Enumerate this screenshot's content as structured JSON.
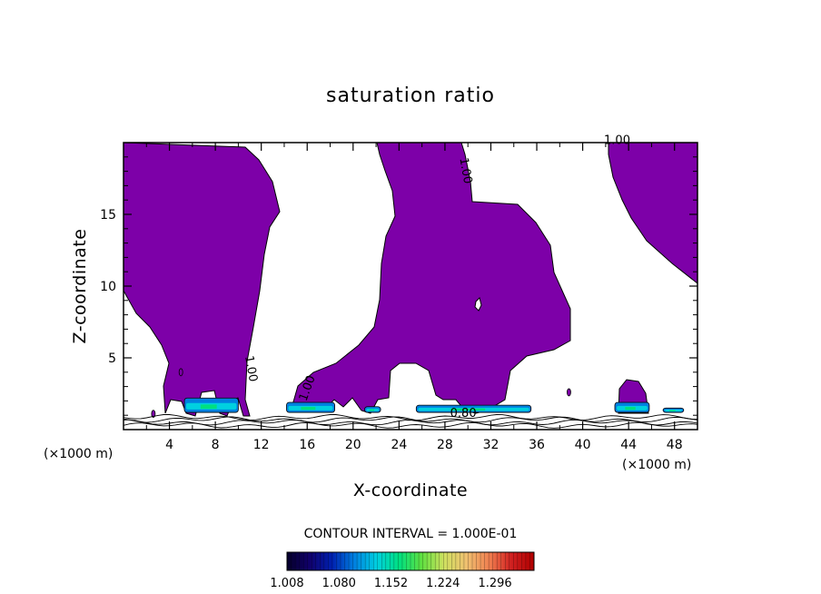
{
  "chart_data": {
    "type": "heatmap",
    "title": "saturation ratio",
    "xlabel": "X-coordinate",
    "ylabel": "Z-coordinate",
    "x_unit": "(×1000 m)",
    "z_unit": "(×1000 m)",
    "xlim": [
      0,
      50
    ],
    "ylim": [
      0,
      20
    ],
    "xticks": [
      4,
      8,
      12,
      16,
      20,
      24,
      28,
      32,
      36,
      40,
      44,
      48
    ],
    "yticks": [
      5,
      10,
      15
    ],
    "contour_interval_label": "CONTOUR INTERVAL = 1.000E-01",
    "contour_labels": [
      {
        "text": "1.00",
        "x": 43.0,
        "z": 19.9
      },
      {
        "text": "1.00",
        "x": 29.5,
        "z": 18.0
      },
      {
        "text": "1.00",
        "x": 10.8,
        "z": 4.2
      },
      {
        "text": "1.00",
        "x": 16.3,
        "z": 2.8
      },
      {
        "text": "0.80",
        "x": 29.6,
        "z": 0.9
      }
    ],
    "saturated_fill_color": "#7d00a8",
    "colorbar": {
      "tick_labels": [
        "1.008",
        "1.080",
        "1.152",
        "1.224",
        "1.296"
      ],
      "min": 1.008,
      "max": 1.35,
      "colors": [
        "#06002a",
        "#10006a",
        "#0020b0",
        "#0080e0",
        "#00d0e0",
        "#00e080",
        "#60e040",
        "#d0e060",
        "#f0c070",
        "#f08050",
        "#d02020",
        "#b00000"
      ]
    },
    "supersaturated_cores": [
      {
        "x0": 5.3,
        "x1": 10.0,
        "z0": 1.2,
        "z1": 2.2
      },
      {
        "x0": 14.2,
        "x1": 18.4,
        "z0": 1.2,
        "z1": 1.9
      },
      {
        "x0": 21.0,
        "x1": 22.4,
        "z0": 1.2,
        "z1": 1.6
      },
      {
        "x0": 25.5,
        "x1": 35.5,
        "z0": 1.2,
        "z1": 1.7
      },
      {
        "x0": 42.8,
        "x1": 45.8,
        "z0": 1.2,
        "z1": 1.9
      },
      {
        "x0": 47.0,
        "x1": 48.8,
        "z0": 1.2,
        "z1": 1.5
      }
    ]
  }
}
